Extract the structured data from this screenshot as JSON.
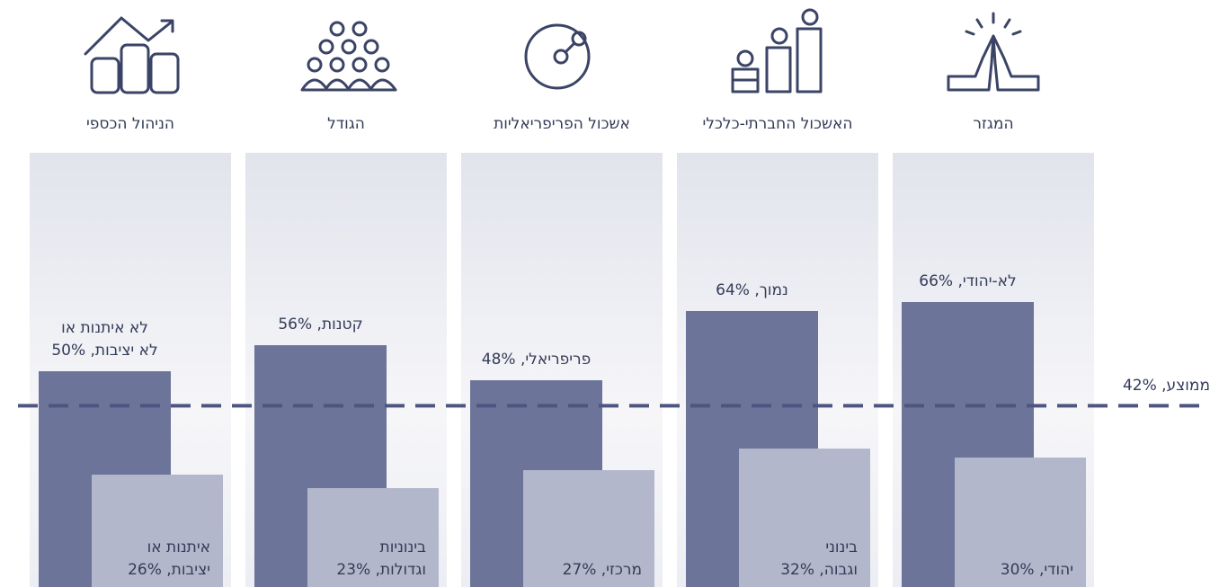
{
  "chart_data": {
    "type": "bar",
    "categories": [
      "המגזר",
      "האשכול החברתי-כלכלי",
      "אשכול הפריפריאליות",
      "הגודל",
      "הניהול הכספי"
    ],
    "series": [
      {
        "color": "#6c7599",
        "values": [
          66,
          64,
          48,
          56,
          50
        ],
        "value_labels": [
          "לא-יהודי, 66%",
          "נמוך, 64%",
          "פריפריאלי, 48%",
          "קטנות, 56%",
          "לא איתנות או\nלא יציבות, 50%"
        ]
      },
      {
        "color": "#b3b7cb",
        "values": [
          30,
          32,
          27,
          23,
          26
        ],
        "value_labels": [
          "יהודי, 30%",
          "בינוני\nוגבוה, 32%",
          "מרכזי, 27%",
          "בינוניות\nוגדולות, 23%",
          "איתנות או\nיציבות, 26%"
        ]
      }
    ],
    "reference_line": {
      "value": 42,
      "label": "ממוצע, 42%",
      "color": "#4d5580"
    }
  }
}
